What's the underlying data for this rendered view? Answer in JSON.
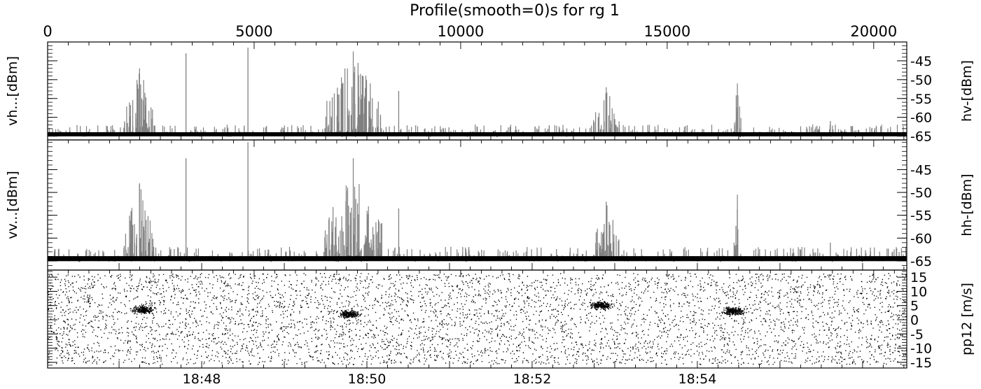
{
  "title": "Profile(smooth=0)s for rg 1",
  "colors": {
    "axes": "#000000",
    "echo": "#808080",
    "noise": "#000000",
    "background": "#ffffff"
  },
  "chart_data": [
    {
      "type": "line",
      "panel": "vh-hv",
      "ylabel_left": "vh...[dBm]",
      "ylabel_right": "hv-[dBm]",
      "xlim": [
        0,
        20800
      ],
      "ylim": [
        -66,
        -40
      ],
      "yticks": [
        -45,
        -50,
        -55,
        -60,
        -65
      ],
      "ytick_labels": [
        "-45",
        "-50",
        "-55",
        "-60",
        "-65"
      ],
      "noise_floor": -64.5,
      "bursts": [
        {
          "x_start": 1850,
          "x_end": 2600,
          "peak": -47
        },
        {
          "x_start": 6700,
          "x_end": 8100,
          "peak": -42.5
        },
        {
          "x_start": 13200,
          "x_end": 13850,
          "peak": -52
        },
        {
          "x_start": 16600,
          "x_end": 16800,
          "peak": -51
        }
      ],
      "spikes": [
        {
          "x": 3350,
          "y": -43
        },
        {
          "x": 4850,
          "y": -41.5
        },
        {
          "x": 8500,
          "y": -53
        },
        {
          "x": 18950,
          "y": -61
        }
      ]
    },
    {
      "type": "line",
      "panel": "vv-hh",
      "ylabel_left": "vv...[dBm]",
      "ylabel_right": "hh-[dBm]",
      "xlim": [
        0,
        20800
      ],
      "ylim": [
        -67,
        -38.5
      ],
      "yticks": [
        -45,
        -50,
        -55,
        -60,
        -65
      ],
      "ytick_labels": [
        "-45",
        "-50",
        "-55",
        "-60",
        "-65"
      ],
      "noise_floor": -64.5,
      "bursts": [
        {
          "x_start": 1850,
          "x_end": 2600,
          "peak": -48
        },
        {
          "x_start": 6700,
          "x_end": 8100,
          "peak": -42.5
        },
        {
          "x_start": 13200,
          "x_end": 13850,
          "peak": -52
        },
        {
          "x_start": 16600,
          "x_end": 16800,
          "peak": -50.5
        }
      ],
      "spikes": [
        {
          "x": 3350,
          "y": -42.5
        },
        {
          "x": 4850,
          "y": -39
        },
        {
          "x": 8500,
          "y": -53.5
        },
        {
          "x": 18950,
          "y": -61
        }
      ]
    },
    {
      "type": "scatter",
      "panel": "pp12",
      "ylabel_right": "pp12 [m/s]",
      "xlim": [
        0,
        20800
      ],
      "ylim": [
        -17,
        17.5
      ],
      "yticks": [
        15,
        10,
        5,
        0,
        -5,
        -10,
        -15
      ],
      "ytick_labels": [
        "15",
        "10",
        "5",
        "0",
        "-5",
        "-10",
        "-15"
      ],
      "clusters": [
        {
          "x": 2300,
          "y": 3.5
        },
        {
          "x": 7300,
          "y": 2
        },
        {
          "x": 13400,
          "y": 5
        },
        {
          "x": 16600,
          "y": 3
        }
      ]
    }
  ],
  "x_axis_top": {
    "range": [
      0,
      20800
    ],
    "ticks": [
      0,
      5000,
      10000,
      15000,
      20000
    ],
    "tick_labels": [
      "0",
      "5000",
      "10000",
      "15000",
      "20000"
    ]
  },
  "x_axis_bottom": {
    "tick_labels": [
      "18:48",
      "18:50",
      "18:52",
      "18:54"
    ],
    "tick_positions": [
      3730,
      7730,
      11730,
      15730
    ]
  }
}
